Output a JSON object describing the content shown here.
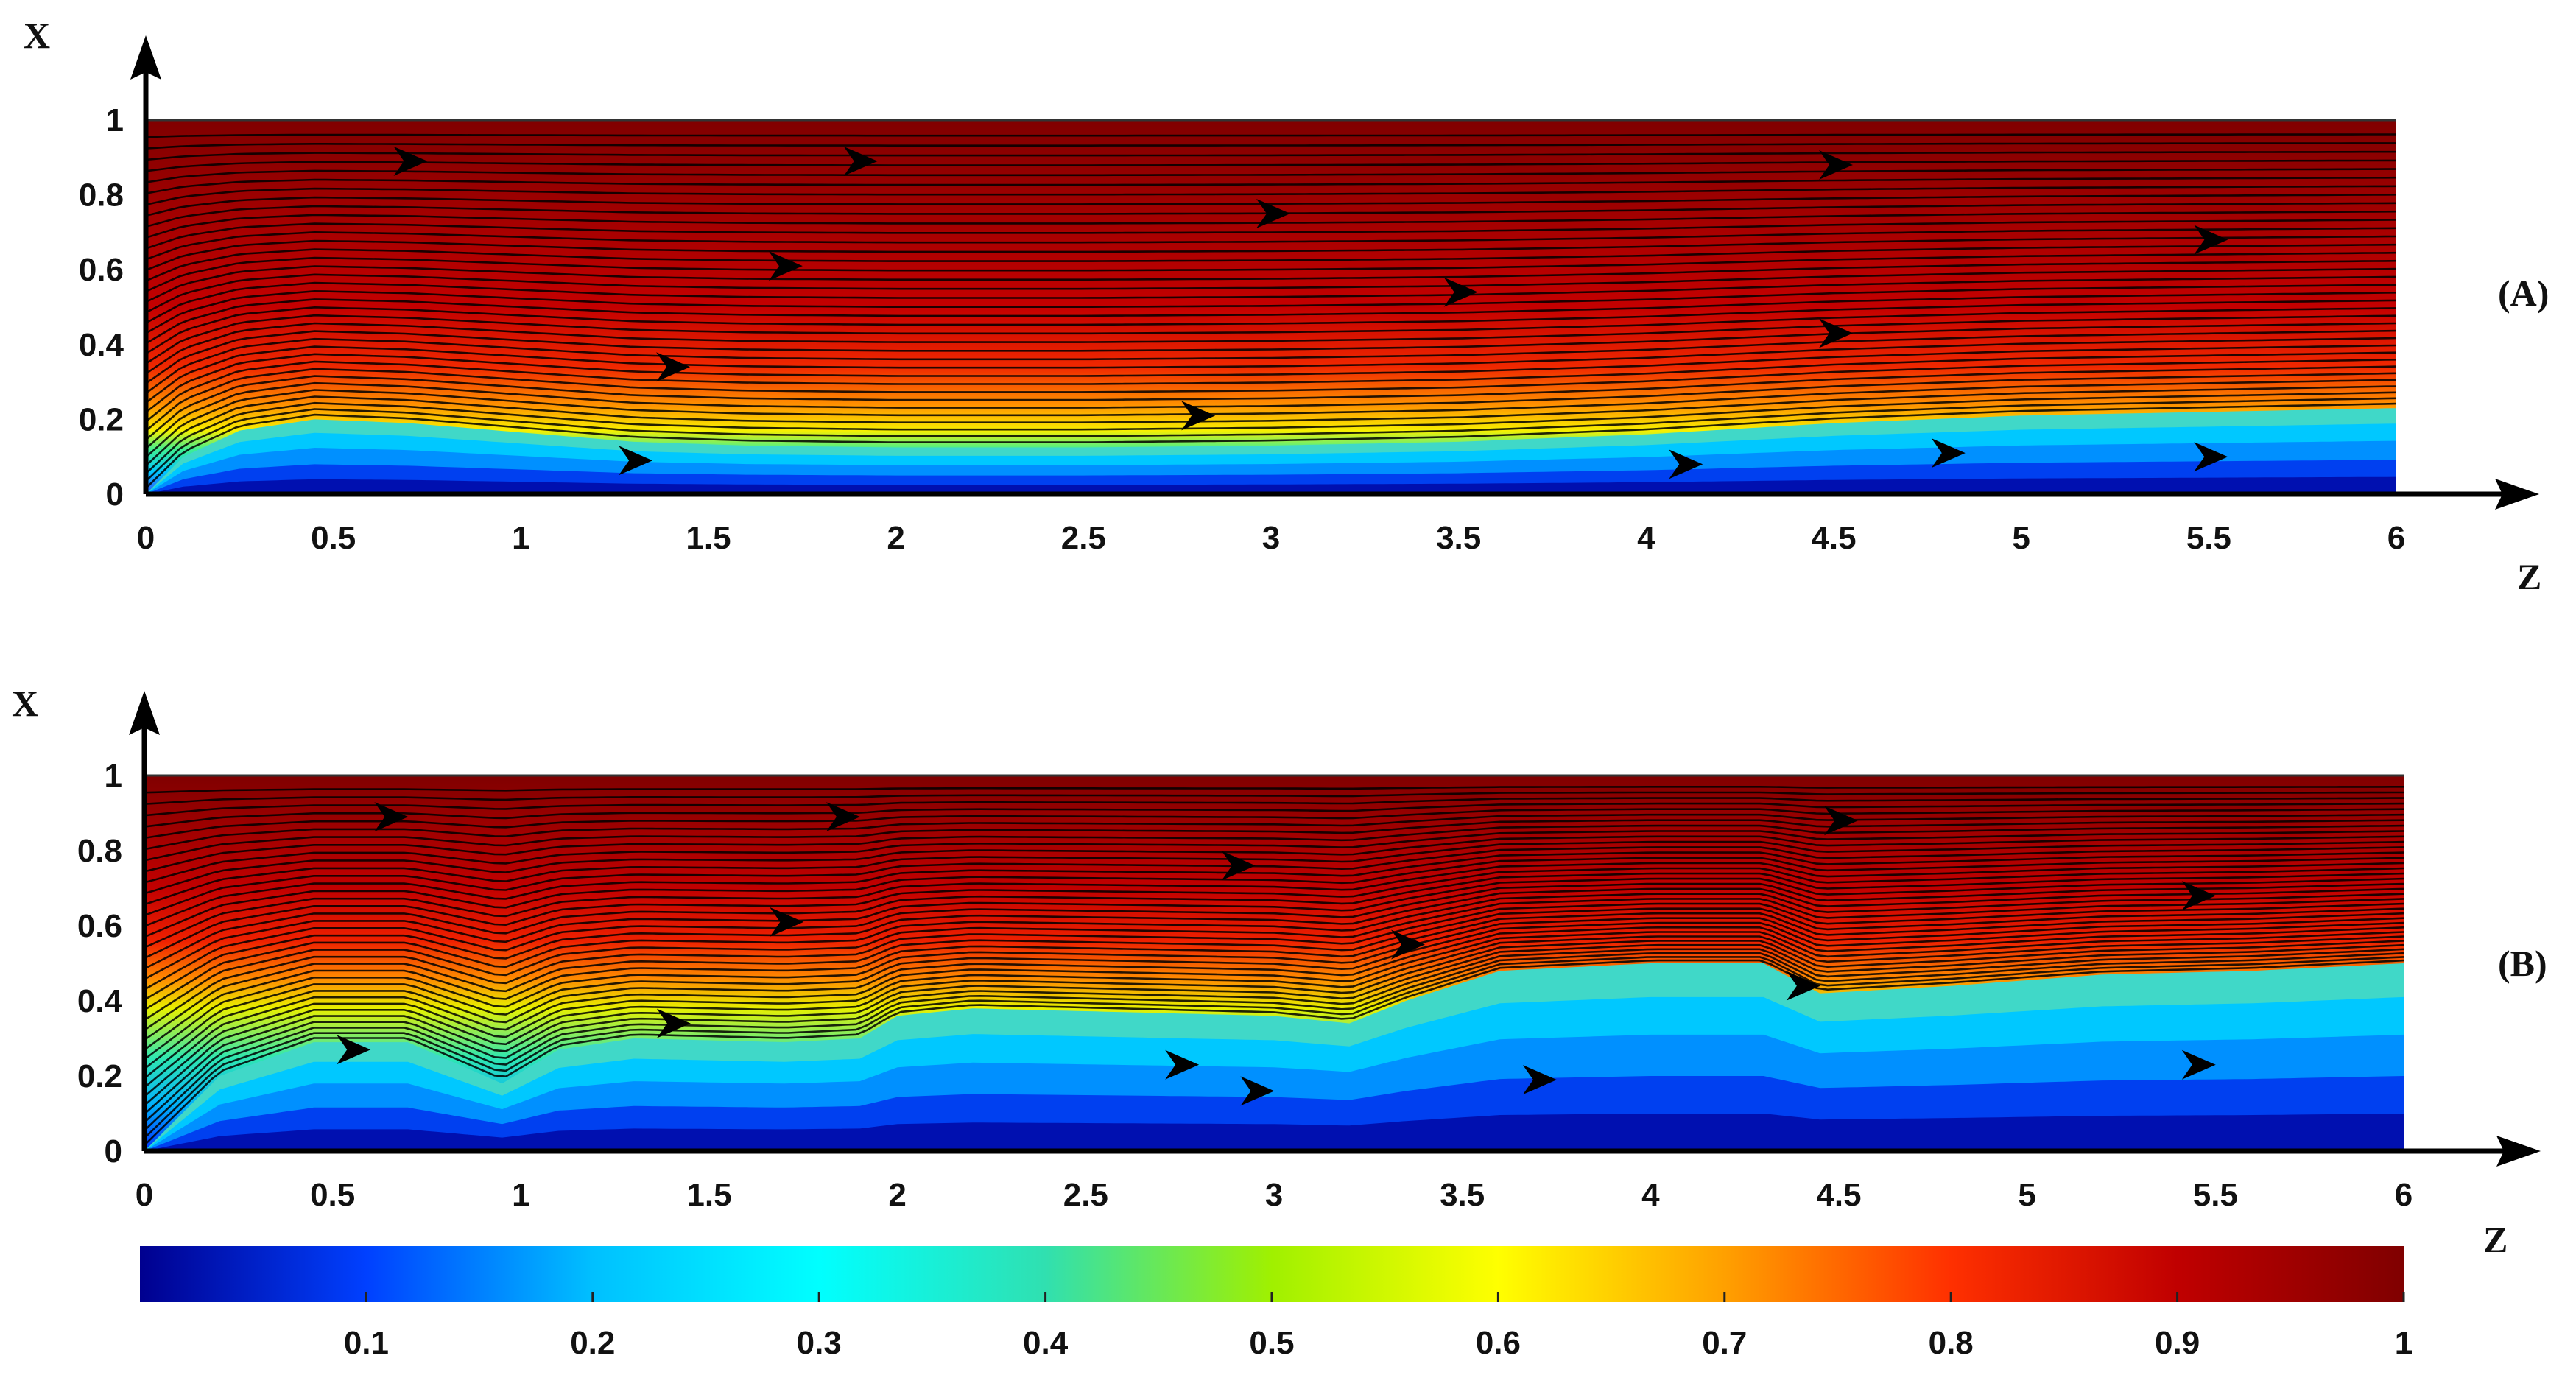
{
  "chart_data": [
    {
      "type": "heatmap",
      "panel_label": "(A)",
      "xlabel": "Z",
      "ylabel": "X",
      "xlim": [
        0,
        6
      ],
      "ylim": [
        0,
        1
      ],
      "xticks": [
        "0",
        "0.5",
        "1",
        "1.5",
        "2",
        "2.5",
        "3",
        "3.5",
        "4",
        "4.5",
        "5",
        "5.5",
        "6"
      ],
      "yticks": [
        "0",
        "0.2",
        "0.4",
        "0.6",
        "0.8",
        "1"
      ],
      "boundary_layer": {
        "z": [
          0,
          0.1,
          0.25,
          0.45,
          0.7,
          1.0,
          1.3,
          1.6,
          2,
          2.5,
          3,
          3.5,
          4,
          4.5,
          5,
          5.5,
          6
        ],
        "x": [
          0,
          0.1,
          0.17,
          0.2,
          0.19,
          0.165,
          0.14,
          0.13,
          0.125,
          0.125,
          0.13,
          0.14,
          0.16,
          0.19,
          0.21,
          0.22,
          0.23
        ]
      },
      "flow_arrows": [
        [
          0.7,
          0.89
        ],
        [
          1.9,
          0.89
        ],
        [
          3.0,
          0.75
        ],
        [
          4.5,
          0.88
        ],
        [
          1.7,
          0.61
        ],
        [
          3.5,
          0.54
        ],
        [
          5.5,
          0.68
        ],
        [
          1.4,
          0.34
        ],
        [
          4.5,
          0.43
        ],
        [
          2.8,
          0.21
        ],
        [
          1.3,
          0.09
        ],
        [
          4.1,
          0.08
        ],
        [
          4.8,
          0.11
        ],
        [
          5.5,
          0.1
        ]
      ]
    },
    {
      "type": "heatmap",
      "panel_label": "(B)",
      "xlabel": "Z",
      "ylabel": "X",
      "xlim": [
        0,
        6
      ],
      "ylim": [
        0,
        1
      ],
      "xticks": [
        "0",
        "0.5",
        "1",
        "1.5",
        "2",
        "2.5",
        "3",
        "3.5",
        "4",
        "4.5",
        "5",
        "5.5",
        "6"
      ],
      "yticks": [
        "0",
        "0.2",
        "0.4",
        "0.6",
        "0.8",
        "1"
      ],
      "boundary_layer": {
        "z": [
          0,
          0.2,
          0.45,
          0.7,
          0.95,
          1.1,
          1.3,
          1.7,
          1.9,
          2.0,
          2.2,
          2.6,
          3.0,
          3.2,
          3.35,
          3.6,
          4.0,
          4.3,
          4.45,
          4.8,
          5.2,
          5.6,
          6
        ],
        "x": [
          0,
          0.2,
          0.29,
          0.29,
          0.18,
          0.27,
          0.3,
          0.29,
          0.3,
          0.36,
          0.38,
          0.37,
          0.36,
          0.34,
          0.4,
          0.48,
          0.5,
          0.5,
          0.42,
          0.44,
          0.47,
          0.48,
          0.5
        ]
      },
      "flow_arrows": [
        [
          0.65,
          0.89
        ],
        [
          1.85,
          0.89
        ],
        [
          2.9,
          0.76
        ],
        [
          4.5,
          0.88
        ],
        [
          1.7,
          0.61
        ],
        [
          3.35,
          0.55
        ],
        [
          5.45,
          0.68
        ],
        [
          1.4,
          0.34
        ],
        [
          4.4,
          0.44
        ],
        [
          0.55,
          0.27
        ],
        [
          2.75,
          0.23
        ],
        [
          2.95,
          0.16
        ],
        [
          3.7,
          0.19
        ],
        [
          5.45,
          0.23
        ]
      ]
    }
  ],
  "colorbar": {
    "range": [
      0,
      1
    ],
    "ticks": [
      "0.1",
      "0.2",
      "0.3",
      "0.4",
      "0.5",
      "0.6",
      "0.7",
      "0.8",
      "0.9",
      "1"
    ],
    "colors": [
      "#00008f",
      "#0040ff",
      "#00c0ff",
      "#00ffff",
      "#30e0b0",
      "#a0f000",
      "#ffff00",
      "#ffa000",
      "#ff3000",
      "#c00000",
      "#800000"
    ]
  }
}
